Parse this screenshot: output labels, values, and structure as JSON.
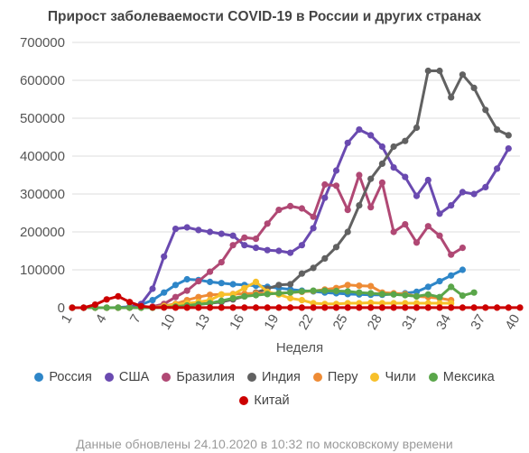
{
  "chart_data": {
    "type": "line",
    "title": "Прирост заболеваемости COVID-19 в России и других странах",
    "xlabel": "Неделя",
    "ylabel": "",
    "ylim": [
      0,
      700000
    ],
    "xlim": [
      1,
      40
    ],
    "y_ticks": [
      "0",
      "100000",
      "200000",
      "300000",
      "400000",
      "500000",
      "600000",
      "700000"
    ],
    "x_ticks": [
      "1",
      "4",
      "7",
      "10",
      "13",
      "16",
      "19",
      "22",
      "25",
      "28",
      "31",
      "34",
      "37",
      "40"
    ],
    "grid": true,
    "legend_position": "bottom",
    "footer": "Данные обновлены 24.10.2020 в 10:32 по московскому времени",
    "series": [
      {
        "name": "Россия",
        "color": "#2e86c8",
        "start": 1,
        "values": [
          0,
          0,
          0,
          0,
          500,
          2500,
          8000,
          20000,
          40000,
          60000,
          75000,
          73000,
          68000,
          65000,
          62000,
          60000,
          58000,
          55000,
          52000,
          48000,
          45000,
          43000,
          40000,
          38000,
          36000,
          35000,
          34000,
          34000,
          36000,
          38000,
          42000,
          55000,
          70000,
          85000,
          100000
        ]
      },
      {
        "name": "США",
        "color": "#6a4ab0",
        "start": 1,
        "values": [
          0,
          0,
          0,
          0,
          0,
          1000,
          10000,
          50000,
          135000,
          208000,
          212000,
          205000,
          200000,
          195000,
          190000,
          165000,
          158000,
          152000,
          150000,
          145000,
          165000,
          210000,
          290000,
          362000,
          435000,
          470000,
          455000,
          425000,
          370000,
          345000,
          295000,
          337000,
          248000,
          270000,
          305000,
          300000,
          318000,
          367000,
          420000
        ]
      },
      {
        "name": "Бразилия",
        "color": "#b04874",
        "start": 1,
        "values": [
          0,
          0,
          0,
          0,
          0,
          0,
          0,
          3000,
          10000,
          28000,
          45000,
          70000,
          95000,
          120000,
          165000,
          185000,
          182000,
          222000,
          258000,
          268000,
          262000,
          240000,
          325000,
          322000,
          258000,
          350000,
          265000,
          330000,
          200000,
          220000,
          172000,
          215000,
          190000,
          140000,
          158000
        ]
      },
      {
        "name": "Индия",
        "color": "#616161",
        "start": 1,
        "values": [
          0,
          0,
          0,
          0,
          0,
          0,
          0,
          0,
          1000,
          3000,
          6000,
          9000,
          12000,
          15000,
          22000,
          30000,
          40000,
          50000,
          60000,
          62000,
          90000,
          105000,
          130000,
          160000,
          200000,
          270000,
          340000,
          380000,
          425000,
          440000,
          475000,
          625000,
          625000,
          555000,
          615000,
          580000,
          522000,
          470000,
          455000
        ]
      },
      {
        "name": "Перу",
        "color": "#ee8b35",
        "start": 1,
        "values": [
          0,
          0,
          0,
          0,
          0,
          0,
          0,
          0,
          5000,
          10000,
          20000,
          28000,
          34000,
          35000,
          36000,
          37000,
          38000,
          38000,
          38000,
          40000,
          42000,
          44000,
          48000,
          52000,
          60000,
          58000,
          57000,
          40000,
          38000,
          36000,
          30000,
          28000,
          25000,
          20000
        ]
      },
      {
        "name": "Чили",
        "color": "#f7c02a",
        "start": 1,
        "values": [
          0,
          0,
          0,
          0,
          0,
          0,
          0,
          0,
          3000,
          8000,
          12000,
          15000,
          20000,
          35000,
          35000,
          52000,
          68000,
          42000,
          35000,
          25000,
          20000,
          12000,
          10000,
          10000,
          12000,
          12000,
          13000,
          12000,
          12000,
          12000,
          12000,
          12000,
          12000,
          12000
        ]
      },
      {
        "name": "Мексика",
        "color": "#5aa64a",
        "start": 1,
        "values": [
          0,
          0,
          0,
          0,
          0,
          0,
          0,
          0,
          1000,
          3000,
          6000,
          9000,
          12000,
          18000,
          25000,
          30000,
          33000,
          36000,
          38000,
          40000,
          43000,
          45000,
          45000,
          44000,
          43000,
          40000,
          38000,
          36000,
          35000,
          33000,
          30000,
          35000,
          28000,
          55000,
          32000,
          40000
        ]
      },
      {
        "name": "Китай",
        "color": "#cc0000",
        "start": 1,
        "values": [
          0,
          0,
          8000,
          22000,
          30000,
          15000,
          4000,
          1000,
          500,
          300,
          200,
          200,
          200,
          200,
          200,
          200,
          200,
          200,
          200,
          200,
          200,
          200,
          200,
          200,
          200,
          200,
          200,
          200,
          200,
          200,
          200,
          200,
          200,
          200,
          200,
          200,
          200,
          200,
          200,
          200
        ]
      }
    ]
  }
}
